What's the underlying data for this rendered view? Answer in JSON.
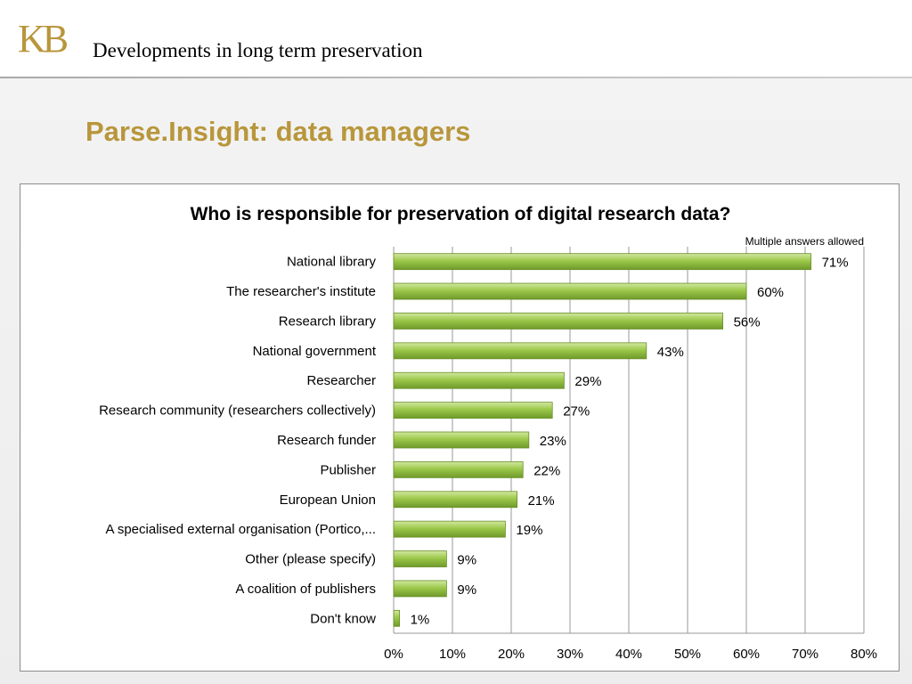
{
  "header": {
    "logo_text": "KB",
    "title": "Developments in long term preservation"
  },
  "slide": {
    "title": "Parse.Insight: data managers"
  },
  "colors": {
    "accent_gold": "#b8963b",
    "bar_green": "#8cb83a",
    "grid": "#9a9a9a"
  },
  "chart_data": {
    "type": "bar",
    "orientation": "horizontal",
    "title": "Who is responsible for preservation of digital research data?",
    "note": "Multiple answers allowed",
    "xlabel": "",
    "ylabel": "",
    "xlim": [
      0,
      80
    ],
    "grid": true,
    "categories": [
      "National library",
      "The researcher's institute",
      "Research library",
      "National government",
      "Researcher",
      "Research community (researchers collectively)",
      "Research funder",
      "Publisher",
      "European Union",
      "A specialised external organisation (Portico,...",
      "Other (please specify)",
      "A coalition of publishers",
      "Don't know"
    ],
    "values": [
      71,
      60,
      56,
      43,
      29,
      27,
      23,
      22,
      21,
      19,
      9,
      9,
      1
    ],
    "value_labels": [
      "71%",
      "60%",
      "56%",
      "43%",
      "29%",
      "27%",
      "23%",
      "22%",
      "21%",
      "19%",
      "9%",
      "9%",
      "1%"
    ],
    "ticks": [
      0,
      10,
      20,
      30,
      40,
      50,
      60,
      70,
      80
    ],
    "tick_labels": [
      "0%",
      "10%",
      "20%",
      "30%",
      "40%",
      "50%",
      "60%",
      "70%",
      "80%"
    ]
  }
}
